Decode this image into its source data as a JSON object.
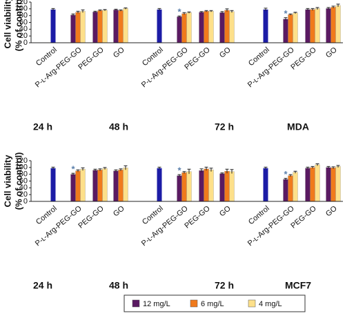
{
  "chart_data": {
    "type": "bar",
    "categories": [
      "Control",
      "P-ʟ-Arg-PEG-GO",
      "PEG-GO",
      "GO",
      "Control",
      "P-ʟ-Arg-PEG-GO",
      "PEG-GO",
      "GO",
      "Control",
      "P-ʟ-Arg-PEG-GO",
      "PEG-GO",
      "GO"
    ],
    "ylabel": [
      "Cell viability",
      "(% of control)"
    ],
    "ylim": [
      0,
      120
    ],
    "yticks": [
      0,
      20,
      40,
      60,
      80,
      100,
      120
    ],
    "legend": "bottom",
    "control_color": "#1c1ca6",
    "series": [
      {
        "name": "12 mg/L",
        "color": "#5a1a62"
      },
      {
        "name": "6 mg/L",
        "color": "#f07a1c"
      },
      {
        "name": "4 mg/L",
        "color": "#fde08a"
      }
    ],
    "panels": [
      {
        "annotations": [
          "24 h",
          "48 h",
          "72 h",
          "MDA"
        ],
        "control": {
          "values": [
            98,
            null,
            null,
            null,
            98,
            null,
            null,
            null,
            98,
            null,
            null,
            null
          ],
          "errors": [
            3,
            null,
            null,
            null,
            3,
            null,
            null,
            null,
            4,
            null,
            null,
            null
          ]
        },
        "series": [
          {
            "values": [
              null,
              82,
              91,
              97,
              null,
              77,
              90,
              89,
              null,
              70,
              98,
              101
            ],
            "errors": [
              null,
              3,
              2,
              2,
              null,
              2,
              2,
              3,
              null,
              4,
              3,
              3
            ]
          },
          {
            "values": [
              null,
              90,
              95,
              95,
              null,
              86,
              93,
              96,
              null,
              83,
              98,
              105
            ],
            "errors": [
              null,
              3,
              2,
              2,
              null,
              3,
              2,
              4,
              null,
              2,
              3,
              3
            ]
          },
          {
            "values": [
              null,
              93,
              96,
              101,
              null,
              89,
              93,
              92,
              null,
              88,
              101,
              110
            ],
            "errors": [
              null,
              4,
              2,
              2,
              null,
              2,
              2,
              3,
              null,
              2,
              3,
              4
            ]
          }
        ],
        "markers": [
          null,
          null,
          null,
          null,
          null,
          "*",
          null,
          null,
          null,
          "*",
          null,
          null
        ]
      },
      {
        "annotations": [
          "24 h",
          "48 h",
          "72 h",
          "MCF7"
        ],
        "control": {
          "values": [
            98,
            null,
            null,
            null,
            98,
            null,
            null,
            null,
            98,
            null,
            null,
            null
          ],
          "errors": [
            3,
            null,
            null,
            null,
            3,
            null,
            null,
            null,
            3,
            null,
            null,
            null
          ]
        },
        "series": [
          {
            "values": [
              null,
              80,
              92,
              90,
              null,
              76,
              91,
              82,
              null,
              65,
              98,
              100
            ],
            "errors": [
              null,
              3,
              3,
              3,
              null,
              3,
              5,
              2,
              null,
              3,
              3,
              3
            ]
          },
          {
            "values": [
              null,
              90,
              93,
              93,
              null,
              85,
              96,
              89,
              null,
              76,
              100,
              99
            ],
            "errors": [
              null,
              3,
              3,
              3,
              null,
              3,
              5,
              6,
              null,
              3,
              3,
              3
            ]
          },
          {
            "values": [
              null,
              95,
              97,
              99,
              null,
              88,
              93,
              88,
              null,
              86,
              108,
              103
            ],
            "errors": [
              null,
              4,
              3,
              6,
              null,
              7,
              5,
              6,
              null,
              3,
              3,
              3
            ]
          }
        ],
        "markers": [
          null,
          "*",
          null,
          null,
          null,
          "*",
          null,
          null,
          null,
          "*",
          null,
          null
        ]
      }
    ]
  }
}
